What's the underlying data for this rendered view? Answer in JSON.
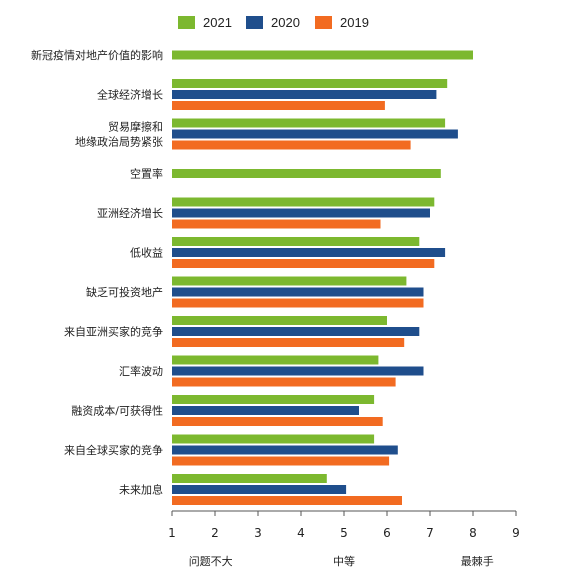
{
  "chart_data": {
    "type": "bar",
    "orientation": "horizontal",
    "categories": [
      [
        "新冠疫情对地产价值的影响"
      ],
      [
        "全球经济增长"
      ],
      [
        "贸易摩擦和",
        "地缘政治局势紧张"
      ],
      [
        "空置率"
      ],
      [
        "亚洲经济增长"
      ],
      [
        "低收益"
      ],
      [
        "缺乏可投资地产"
      ],
      [
        "来自亚洲买家的竞争"
      ],
      [
        "汇率波动"
      ],
      [
        "融资成本/可获得性"
      ],
      [
        "来自全球买家的竞争"
      ],
      [
        "未来加息"
      ]
    ],
    "series": [
      {
        "name": "2021",
        "color": "#7cb82f",
        "values": [
          8.0,
          7.4,
          7.35,
          7.25,
          7.1,
          6.75,
          6.45,
          6.0,
          5.8,
          5.7,
          5.7,
          4.6
        ]
      },
      {
        "name": "2020",
        "color": "#1f4e8c",
        "values": [
          null,
          7.15,
          7.65,
          null,
          7.0,
          7.35,
          6.85,
          6.75,
          6.85,
          5.35,
          6.25,
          5.05
        ]
      },
      {
        "name": "2019",
        "color": "#f26b21",
        "values": [
          null,
          5.95,
          6.55,
          null,
          5.85,
          7.1,
          6.85,
          6.4,
          6.2,
          5.9,
          6.05,
          6.35
        ]
      }
    ],
    "xlim": [
      1,
      9
    ],
    "xticks": [
      1,
      2,
      3,
      4,
      5,
      6,
      7,
      8,
      9
    ],
    "xlabels": {
      "left": "问题不大",
      "middle": "中等",
      "right": "最棘手"
    },
    "legend_position": "top-center",
    "grid": false
  }
}
